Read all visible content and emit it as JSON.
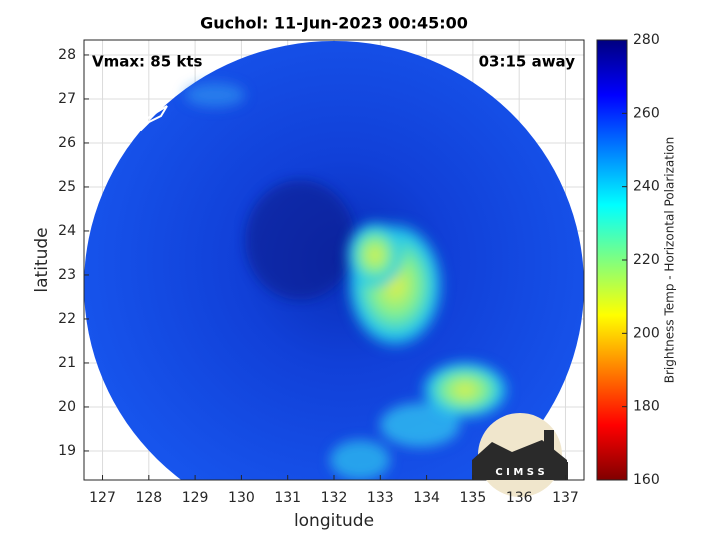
{
  "chart_data": {
    "type": "image",
    "title": "Guchol: 11-Jun-2023 00:45:00",
    "xlabel": "longitude",
    "ylabel": "latitude",
    "xlim": [
      126.6,
      137.4
    ],
    "xticks": [
      127,
      128,
      129,
      130,
      131,
      132,
      133,
      134,
      135,
      136,
      137
    ],
    "ylim": [
      18.34,
      28.34
    ],
    "yticks": [
      19,
      20,
      21,
      22,
      23,
      24,
      25,
      26,
      27,
      28
    ],
    "grid": true,
    "colorbar_label": "Brightness Temp - Horizontal Polarization",
    "clim": [
      160,
      280
    ],
    "cticks": [
      160,
      180,
      200,
      220,
      240,
      260,
      280
    ],
    "annotations": [
      "Vmax: 85 kts",
      "03:15 away"
    ],
    "logo": "C I M S S"
  }
}
